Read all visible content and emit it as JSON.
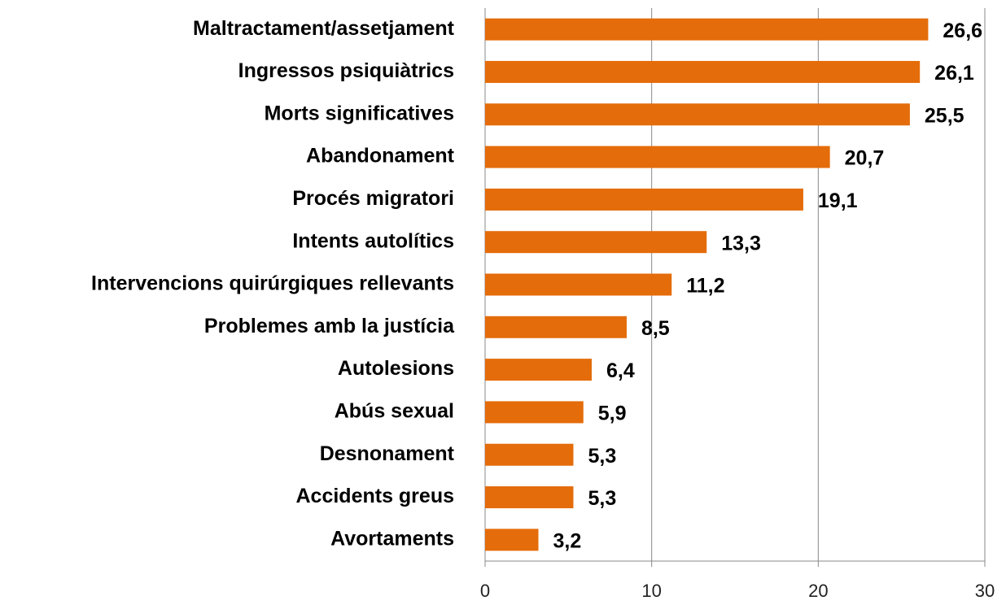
{
  "chart_data": {
    "type": "bar",
    "orientation": "horizontal",
    "categories": [
      "Maltractament/assetjament",
      "Ingressos psiquiàtrics",
      "Morts significatives",
      "Abandonament",
      "Procés migratori",
      "Intents autolítics",
      "Intervencions quirúrgiques rellevants",
      "Problemes amb la justícia",
      "Autolesions",
      "Abús sexual",
      "Desnonament",
      "Accidents greus",
      "Avortaments"
    ],
    "values": [
      26.6,
      26.1,
      25.5,
      20.7,
      19.1,
      13.3,
      11.2,
      8.5,
      6.4,
      5.9,
      5.3,
      5.3,
      3.2
    ],
    "value_labels": [
      "26,6",
      "26,1",
      "25,5",
      "20,7",
      "19,1",
      "13,3",
      "11,2",
      "8,5",
      "6,4",
      "5,9",
      "5,3",
      "5,3",
      "3,2"
    ],
    "color": "#e46c0a",
    "xlim": [
      0,
      30
    ],
    "xticks": [
      0,
      10,
      20,
      30
    ],
    "grid": true
  }
}
